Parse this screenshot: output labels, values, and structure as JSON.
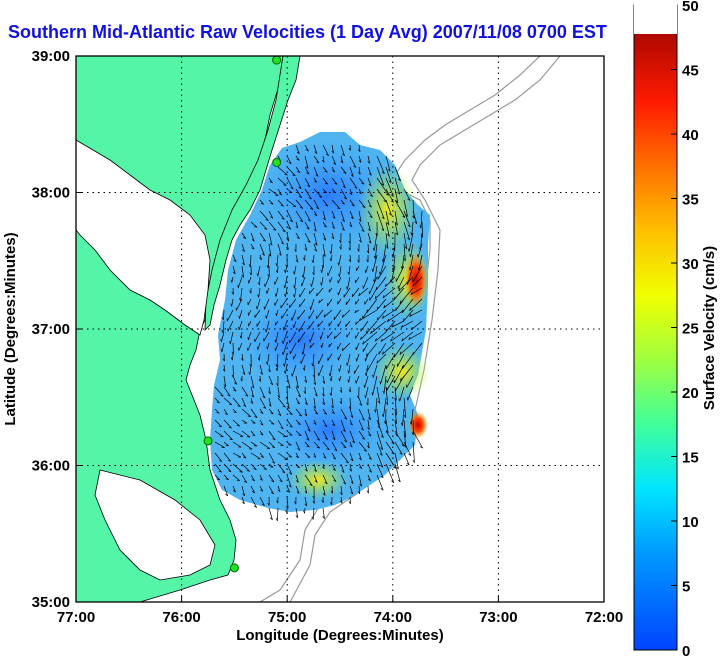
{
  "title": "Southern Mid-Atlantic Raw Velocities (1 Day Avg) 2007/11/08 0700 EST",
  "chart_data": {
    "type": "heatmap",
    "title": "Southern Mid-Atlantic Raw Velocities (1 Day Avg) 2007/11/08 0700 EST",
    "xlabel": "Longitude (Degrees:Minutes)",
    "ylabel": "Latitude (Degrees:Minutes)",
    "x_ticks": [
      "77:00",
      "76:00",
      "75:00",
      "74:00",
      "73:00",
      "72:00"
    ],
    "y_ticks": [
      "39:00",
      "38:00",
      "37:00",
      "36:00",
      "35:00"
    ],
    "xlim": [
      -77,
      -72
    ],
    "ylim": [
      35,
      39
    ],
    "grid": true,
    "colorbar": {
      "label": "Surface Velocity (cm/s)",
      "ticks": [
        "50",
        "45",
        "40",
        "35",
        "30",
        "25",
        "20",
        "15",
        "10",
        "5",
        "0"
      ],
      "range": [
        0,
        50
      ]
    },
    "stations": [
      {
        "lon": -75.1,
        "lat": 38.97
      },
      {
        "lon": -75.1,
        "lat": 38.22
      },
      {
        "lon": -75.75,
        "lat": 36.18
      },
      {
        "lon": -75.5,
        "lat": 35.25
      }
    ],
    "speed_field": [
      {
        "lon": -75.0,
        "lat": 38.1,
        "speed": 6
      },
      {
        "lon": -74.7,
        "lat": 37.8,
        "speed": 8
      },
      {
        "lon": -74.2,
        "lat": 37.9,
        "speed": 22
      },
      {
        "lon": -73.85,
        "lat": 37.3,
        "speed": 42
      },
      {
        "lon": -75.2,
        "lat": 37.3,
        "speed": 9
      },
      {
        "lon": -74.4,
        "lat": 37.1,
        "speed": 14
      },
      {
        "lon": -75.0,
        "lat": 36.8,
        "speed": 5
      },
      {
        "lon": -74.3,
        "lat": 36.6,
        "speed": 20
      },
      {
        "lon": -73.85,
        "lat": 36.3,
        "speed": 45
      },
      {
        "lon": -74.8,
        "lat": 36.3,
        "speed": 8
      },
      {
        "lon": -74.6,
        "lat": 35.9,
        "speed": 26
      },
      {
        "lon": -75.3,
        "lat": 35.9,
        "speed": 17
      }
    ]
  }
}
